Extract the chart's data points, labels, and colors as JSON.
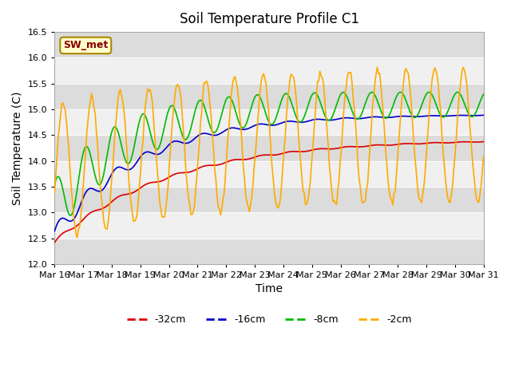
{
  "title": "Soil Temperature Profile C1",
  "xlabel": "Time",
  "ylabel": "Soil Temperature (C)",
  "ylim": [
    12.0,
    16.5
  ],
  "xtick_labels": [
    "Mar 16",
    "Mar 17",
    "Mar 18",
    "Mar 19",
    "Mar 20",
    "Mar 21",
    "Mar 22",
    "Mar 23",
    "Mar 24",
    "Mar 25",
    "Mar 26",
    "Mar 27",
    "Mar 28",
    "Mar 29",
    "Mar 30",
    "Mar 31"
  ],
  "annotation": "SW_met",
  "legend_labels": [
    "-32cm",
    "-16cm",
    "-8cm",
    "-2cm"
  ],
  "colors": {
    "red": "#dd0000",
    "blue": "#0000cc",
    "green": "#00bb00",
    "orange": "#ffaa00"
  },
  "n_days": 15,
  "n_pts": 360
}
